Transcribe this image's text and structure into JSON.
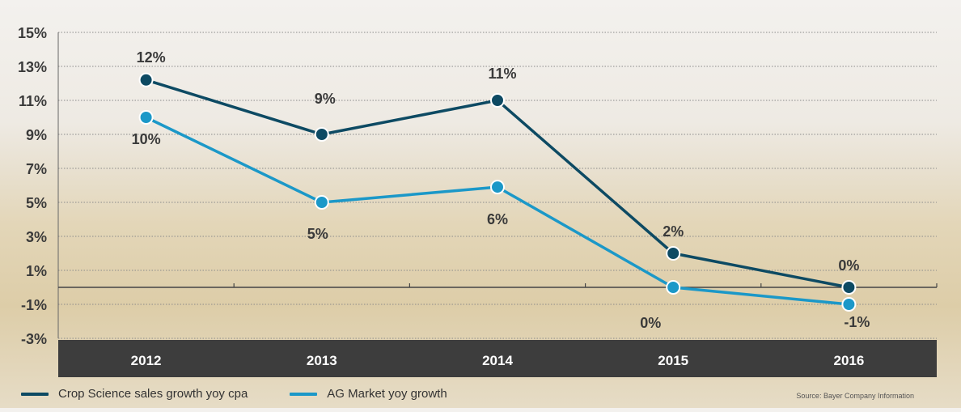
{
  "chart_data": {
    "type": "line",
    "categories": [
      "2012",
      "2013",
      "2014",
      "2015",
      "2016"
    ],
    "series": [
      {
        "name": "Crop Science sales growth yoy cpa",
        "values": [
          12.2,
          9.0,
          11.0,
          2.0,
          0.0
        ],
        "labels": [
          "12%",
          "9%",
          "11%",
          "2%",
          "0%"
        ],
        "color": "#0d4a63"
      },
      {
        "name": "AG Market yoy growth",
        "values": [
          10.0,
          5.0,
          5.9,
          0.0,
          -1.0
        ],
        "labels": [
          "10%",
          "5%",
          "6%",
          "0%",
          "-1%"
        ],
        "color": "#1b98c8"
      }
    ],
    "y_ticks": [
      "15%",
      "13%",
      "11%",
      "9%",
      "7%",
      "5%",
      "3%",
      "1%",
      "-1%",
      "-3%"
    ],
    "ylim": [
      -3,
      15
    ],
    "grid": true,
    "legend_position": "bottom-left"
  },
  "source_note": "Source: Bayer Company Information",
  "colors": {
    "axis_band": "#3d3d3d",
    "axis_text": "#ffffff",
    "grid": "#8a8a8a"
  }
}
